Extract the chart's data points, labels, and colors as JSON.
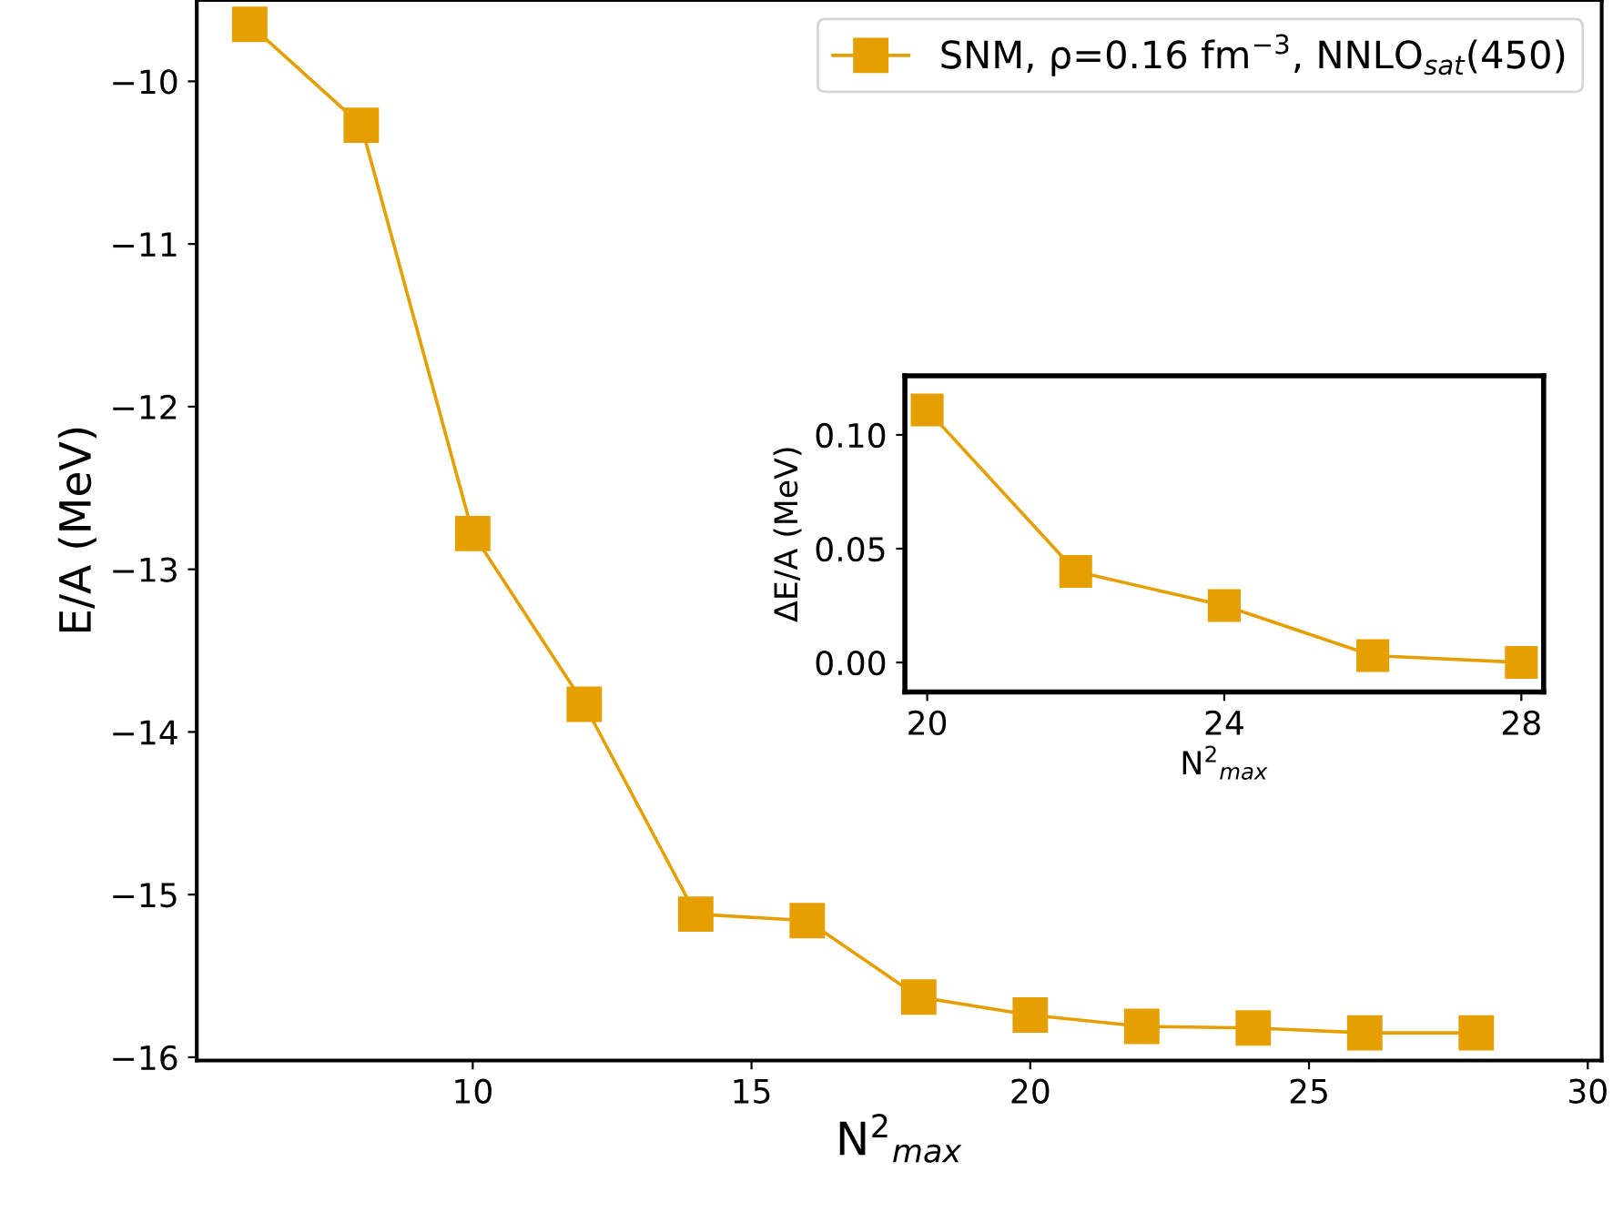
{
  "chart_data": [
    {
      "type": "line",
      "xlabel": "N$^{2}$$_{max}$",
      "ylabel": "E/A (MeV)",
      "marker": "square",
      "legend": "top right",
      "grid": false,
      "x": [
        6,
        8,
        10,
        12,
        14,
        16,
        18,
        20,
        22,
        24,
        26,
        28
      ],
      "series": [
        {
          "name": "SNM, ρ=0.16 fm$^{−3}$, NNLO$_{sat}$(450)",
          "color": "#e69f00",
          "values": [
            -9.65,
            -10.27,
            -12.78,
            -13.83,
            -15.12,
            -15.16,
            -15.63,
            -15.74,
            -15.81,
            -15.82,
            -15.85,
            -15.85
          ]
        }
      ],
      "xlim": [
        5.05,
        30.25
      ],
      "xticks": [
        10,
        15,
        20,
        25,
        30
      ],
      "ylim": [
        -16.02,
        -9.5
      ],
      "yticks": [
        -16,
        -15,
        -14,
        -13,
        -12,
        -11,
        -10
      ]
    },
    {
      "type": "line",
      "xlabel": "N$^{2}$$_{max}$",
      "ylabel": "ΔE/A (MeV)",
      "marker": "square",
      "grid": false,
      "x": [
        20,
        22,
        24,
        26,
        28
      ],
      "series": [
        {
          "color": "#e69f00",
          "values": [
            0.111,
            0.04,
            0.025,
            0.003,
            0.0
          ]
        }
      ],
      "xlim": [
        19.7,
        28.3
      ],
      "xticks": [
        20,
        24,
        28
      ],
      "ylim": [
        -0.013,
        0.126
      ],
      "yticks": [
        {
          "value": 0,
          "label": "0.00"
        },
        {
          "value": 0.05,
          "label": "0.05"
        },
        {
          "value": 0.1,
          "label": "0.10"
        }
      ]
    }
  ]
}
